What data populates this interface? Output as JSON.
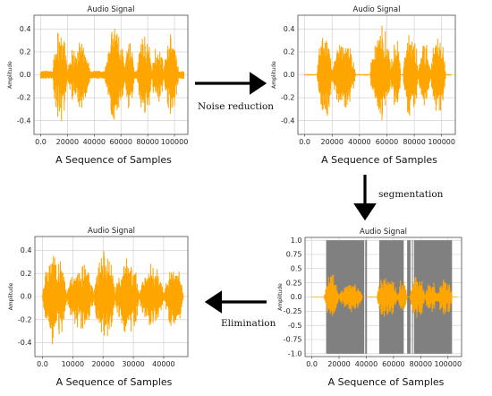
{
  "steps": {
    "noise_reduction": "Noise reduction",
    "segmentation": "segmentation",
    "elimination": "Elimination"
  },
  "colors": {
    "signal": "#FFA500",
    "segment": "#808080",
    "grid": "#cccccc",
    "arrow": "#000000"
  },
  "chart_data": [
    {
      "id": "original",
      "type": "line",
      "title": "Audio Signal",
      "ylabel": "Amplitude",
      "xlabel": "A Sequence of Samples",
      "xlim": [
        -5000,
        110000
      ],
      "ylim": [
        -0.52,
        0.52
      ],
      "xticks": [
        0,
        20000,
        40000,
        60000,
        80000,
        100000
      ],
      "yticks": [
        -0.4,
        -0.2,
        0.0,
        0.2,
        0.4
      ],
      "grid": true,
      "signal": {
        "samples": 107000,
        "bursts": [
          {
            "start": 9000,
            "end": 20000,
            "peak": 0.45
          },
          {
            "start": 20000,
            "end": 37000,
            "peak": 0.33
          },
          {
            "start": 48000,
            "end": 63000,
            "peak": 0.48
          },
          {
            "start": 63000,
            "end": 70000,
            "peak": 0.35
          },
          {
            "start": 72000,
            "end": 83000,
            "peak": 0.42
          },
          {
            "start": 83000,
            "end": 92000,
            "peak": 0.32
          },
          {
            "start": 92000,
            "end": 103000,
            "peak": 0.38
          }
        ],
        "noise_floor": 0.035
      }
    },
    {
      "id": "denoised",
      "type": "line",
      "title": "Audio Signal",
      "ylabel": "Amplitude",
      "xlabel": "A Sequence of Samples",
      "xlim": [
        -5000,
        110000
      ],
      "ylim": [
        -0.52,
        0.52
      ],
      "xticks": [
        0,
        20000,
        40000,
        60000,
        80000,
        100000
      ],
      "yticks": [
        -0.4,
        -0.2,
        0.0,
        0.2,
        0.4
      ],
      "grid": true,
      "signal": {
        "samples": 107000,
        "bursts": [
          {
            "start": 9000,
            "end": 20000,
            "peak": 0.45
          },
          {
            "start": 20000,
            "end": 37000,
            "peak": 0.33
          },
          {
            "start": 48000,
            "end": 63000,
            "peak": 0.48
          },
          {
            "start": 63000,
            "end": 70000,
            "peak": 0.35
          },
          {
            "start": 72000,
            "end": 83000,
            "peak": 0.42
          },
          {
            "start": 83000,
            "end": 92000,
            "peak": 0.32
          },
          {
            "start": 92000,
            "end": 103000,
            "peak": 0.38
          }
        ],
        "noise_floor": 0.006
      }
    },
    {
      "id": "segmented",
      "type": "line",
      "title": "Audio Signal",
      "ylabel": "Amplitude",
      "xlabel": "A Sequence of Samples",
      "xlim": [
        -5000,
        110000
      ],
      "ylim": [
        -1.05,
        1.05
      ],
      "xticks": [
        0,
        20000,
        40000,
        60000,
        80000,
        100000
      ],
      "yticks": [
        -1.0,
        -0.75,
        -0.5,
        -0.25,
        0.0,
        0.25,
        0.5,
        0.75,
        1.0
      ],
      "grid": true,
      "segments": [
        [
          10500,
          38500
        ],
        [
          39200,
          40500
        ],
        [
          49500,
          67500
        ],
        [
          70000,
          72500
        ],
        [
          73500,
          74200
        ],
        [
          75000,
          103000
        ]
      ],
      "signal": {
        "samples": 107000,
        "bursts": [
          {
            "start": 9000,
            "end": 20000,
            "peak": 0.45
          },
          {
            "start": 20000,
            "end": 37000,
            "peak": 0.33
          },
          {
            "start": 48000,
            "end": 63000,
            "peak": 0.48
          },
          {
            "start": 63000,
            "end": 70000,
            "peak": 0.35
          },
          {
            "start": 72000,
            "end": 83000,
            "peak": 0.42
          },
          {
            "start": 83000,
            "end": 92000,
            "peak": 0.32
          },
          {
            "start": 92000,
            "end": 103000,
            "peak": 0.38
          }
        ],
        "noise_floor": 0.006
      }
    },
    {
      "id": "eliminated",
      "type": "line",
      "title": "Audio Signal",
      "ylabel": "Amplitude",
      "xlabel": "A Sequence of Samples",
      "xlim": [
        -2500,
        48000
      ],
      "ylim": [
        -0.52,
        0.52
      ],
      "xticks": [
        0,
        10000,
        20000,
        30000,
        40000
      ],
      "yticks": [
        -0.4,
        -0.2,
        0.0,
        0.2,
        0.4
      ],
      "grid": true,
      "signal": {
        "samples": 46500,
        "bursts": [
          {
            "start": 0,
            "end": 8000,
            "peak": 0.45
          },
          {
            "start": 8000,
            "end": 17000,
            "peak": 0.33
          },
          {
            "start": 17000,
            "end": 24000,
            "peak": 0.42
          },
          {
            "start": 24000,
            "end": 32000,
            "peak": 0.38
          },
          {
            "start": 32000,
            "end": 40000,
            "peak": 0.32
          },
          {
            "start": 40000,
            "end": 46500,
            "peak": 0.3
          }
        ],
        "noise_floor": 0.01
      }
    }
  ]
}
